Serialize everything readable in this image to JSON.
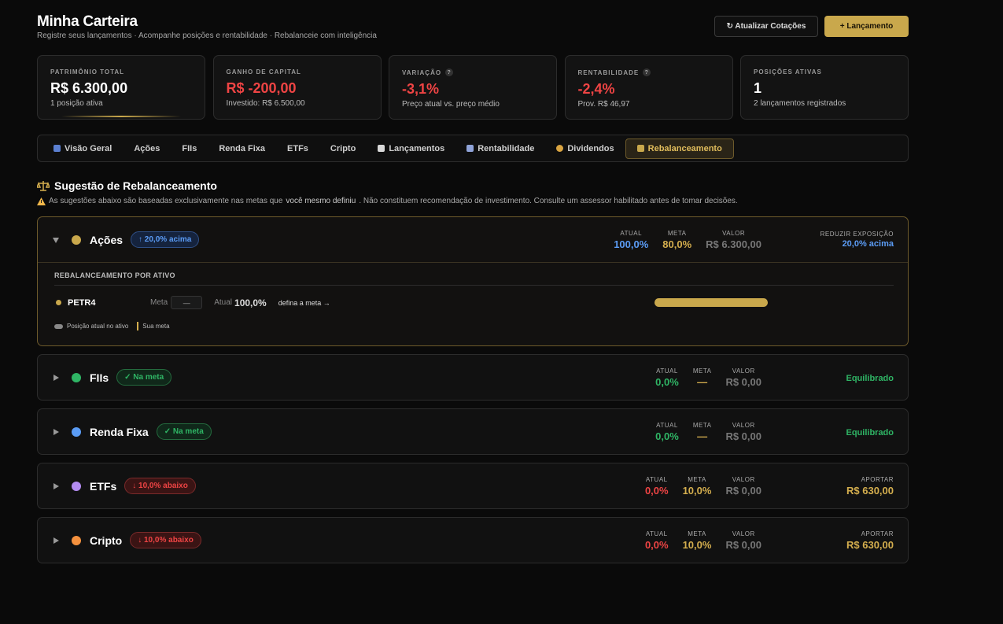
{
  "header": {
    "title": "Minha Carteira",
    "subtitle": "Registre seus lançamentos · Acompanhe posições e rentabilidade · Rebalanceie com inteligência",
    "buttons": [
      "↻ Atualizar Cotações",
      "+ Lançamento"
    ]
  },
  "cards": [
    {
      "label": "PATRIMÔNIO TOTAL",
      "value": "R$ 6.300,00",
      "sub": "1 posição ativa"
    },
    {
      "label": "GANHO DE CAPITAL",
      "value": "R$ -200,00",
      "sub": "Investido: R$ 6.500,00"
    },
    {
      "label": "VARIAÇÃO",
      "help": "?",
      "value": "-3,1%",
      "sub": "Preço atual vs. preço médio"
    },
    {
      "label": "RENTABILIDADE",
      "help": "?",
      "value": "-2,4%",
      "sub": "Prov. R$ 46,97"
    },
    {
      "label": "POSIÇÕES ATIVAS",
      "value": "1",
      "sub": "2 lançamentos registrados"
    }
  ],
  "tabs": [
    "Visão Geral",
    "Ações",
    "FIIs",
    "Renda Fixa",
    "ETFs",
    "Cripto",
    "Lançamentos",
    "Rentabilidade",
    "Dividendos",
    "Rebalanceamento"
  ],
  "rebalance": {
    "title": "Sugestão de Rebalanceamento",
    "disclaimer": [
      "As sugestões abaixo são baseadas exclusivamente nas metas que ",
      "você mesmo definiu",
      ". Não constituem recomendação de investimento. Consulte um assessor habilitado antes de tomar decisões."
    ],
    "groups": [
      {
        "name": "Ações",
        "badge": "↑ 20,0% acima",
        "stats": [
          {
            "label": "ATUAL",
            "value": "100,0%"
          },
          {
            "label": "META",
            "value": "80,0%"
          },
          {
            "label": "VALOR",
            "value": "R$ 6.300,00"
          }
        ],
        "action": {
          "label": "REDUZIR EXPOSIÇÃO",
          "value": "20,0% acima"
        },
        "detail": {
          "heading": "REBALANCEAMENTO POR ATIVO",
          "asset": {
            "ticker": "PETR4",
            "meta_label": "Meta",
            "meta_input": "—",
            "atual_label": "Atual",
            "atual": "100,0%",
            "link": "defina a meta →"
          },
          "legend": [
            "Posição atual no ativo",
            "Sua meta"
          ]
        }
      },
      {
        "name": "FIIs",
        "badge": "✓ Na meta",
        "stats": [
          {
            "label": "ATUAL",
            "value": "0,0%"
          },
          {
            "label": "META",
            "value": "—"
          },
          {
            "label": "VALOR",
            "value": "R$ 0,00"
          }
        ],
        "action": {
          "value": "Equilibrado"
        }
      },
      {
        "name": "Renda Fixa",
        "badge": "✓ Na meta",
        "stats": [
          {
            "label": "ATUAL",
            "value": "0,0%"
          },
          {
            "label": "META",
            "value": "—"
          },
          {
            "label": "VALOR",
            "value": "R$ 0,00"
          }
        ],
        "action": {
          "value": "Equilibrado"
        }
      },
      {
        "name": "ETFs",
        "badge": "↓ 10,0% abaixo",
        "stats": [
          {
            "label": "ATUAL",
            "value": "0,0%"
          },
          {
            "label": "META",
            "value": "10,0%"
          },
          {
            "label": "VALOR",
            "value": "R$ 0,00"
          }
        ],
        "action": {
          "label": "APORTAR",
          "value": "R$ 630,00"
        }
      },
      {
        "name": "Cripto",
        "badge": "↓ 10,0% abaixo",
        "stats": [
          {
            "label": "ATUAL",
            "value": "0,0%"
          },
          {
            "label": "META",
            "value": "10,0%"
          },
          {
            "label": "VALOR",
            "value": "R$ 0,00"
          }
        ],
        "action": {
          "label": "APORTAR",
          "value": "R$ 630,00"
        }
      }
    ]
  }
}
